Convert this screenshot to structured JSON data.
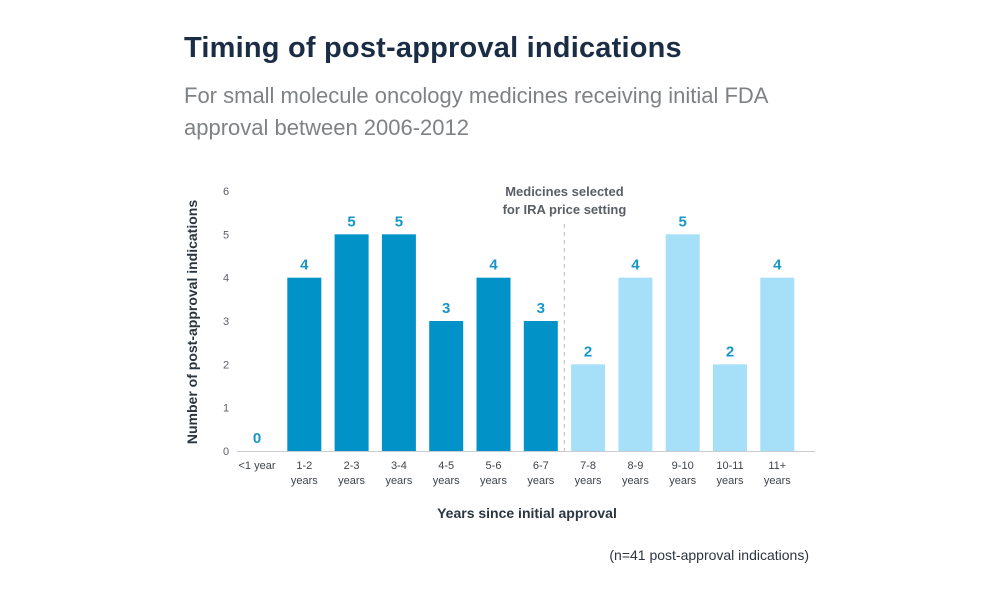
{
  "chart_data": {
    "type": "bar",
    "title": "Timing of post-approval indications",
    "subtitle": "For small molecule oncology medicines receiving initial FDA approval between 2006-2012",
    "xlabel": "Years since initial approval",
    "ylabel": "Number of post-approval indications",
    "ylim": [
      0,
      6
    ],
    "yticks": [
      0,
      1,
      2,
      3,
      4,
      5,
      6
    ],
    "grid": false,
    "categories": [
      [
        "<1 year"
      ],
      [
        "1-2",
        "years"
      ],
      [
        "2-3",
        "years"
      ],
      [
        "3-4",
        "years"
      ],
      [
        "4-5",
        "years"
      ],
      [
        "5-6",
        "years"
      ],
      [
        "6-7",
        "years"
      ],
      [
        "7-8",
        "years"
      ],
      [
        "8-9",
        "years"
      ],
      [
        "9-10",
        "years"
      ],
      [
        "10-11",
        "years"
      ],
      [
        "11+",
        "years"
      ]
    ],
    "values": [
      0,
      4,
      5,
      5,
      3,
      4,
      3,
      2,
      4,
      5,
      2,
      4
    ],
    "colors": {
      "dark_bar": "#0192c8",
      "light_bar": "#a6dff8",
      "value_label": "#1797c8",
      "divider": "#c4c8cc"
    },
    "highlight_from_index": 7,
    "annotation": [
      "Medicines selected",
      "for IRA price setting"
    ],
    "footnote": "(n=41 post-approval indications)"
  }
}
